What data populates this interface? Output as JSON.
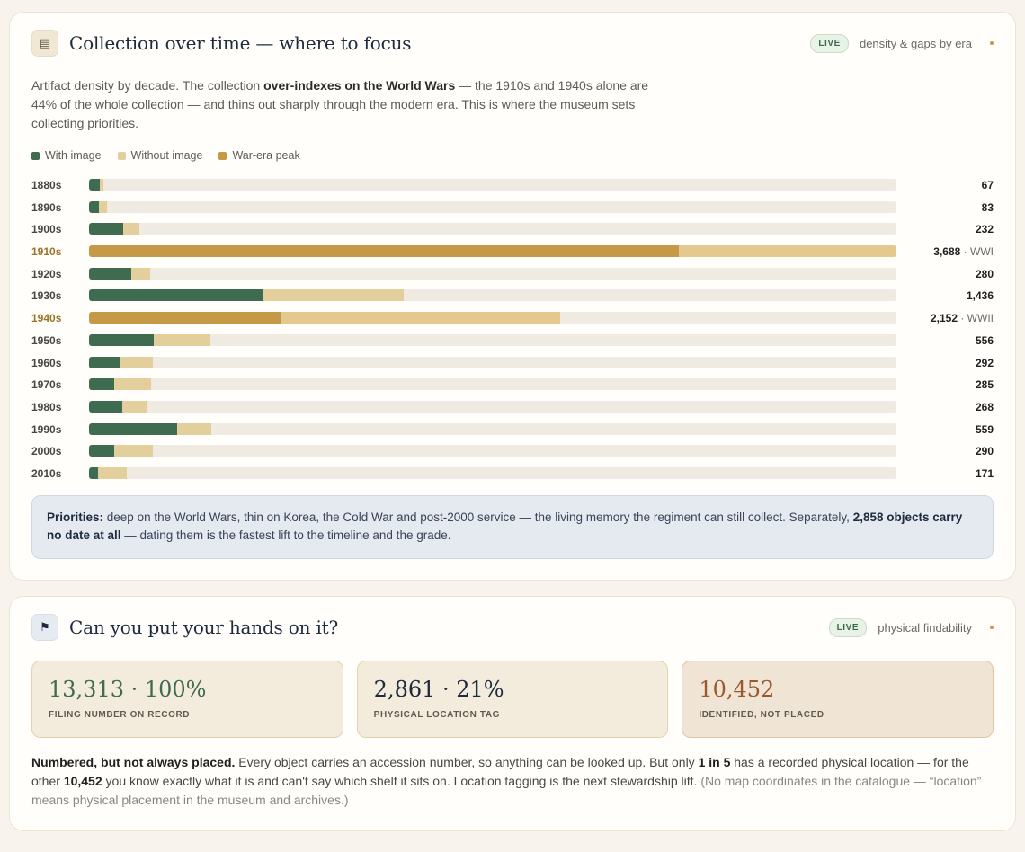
{
  "colors": {
    "with_image": "#3f6b51",
    "without_image": "#e3cf9b",
    "war_peak": "#c49a46",
    "war_peak_without_image": "#e3c98e",
    "track": "#f0ebe2",
    "stat_green": "#3f6b51",
    "stat_navy": "#1f2b3d",
    "stat_brown": "#9a5a2e"
  },
  "density_card": {
    "icon": "archive-icon",
    "icon_glyph": "▤",
    "title": "Collection over time — where to focus",
    "badge": "LIVE",
    "meta": "density & gaps by era",
    "lede_1": "Artifact density by decade. The collection ",
    "lede_bold": "over-indexes on the World Wars",
    "lede_2": " — the 1910s and 1940s alone are 44% of the whole collection — and thins out sharply through the modern era. This is where the museum sets collecting priorities.",
    "legend": [
      {
        "label": "With image",
        "color": "#3f6b51"
      },
      {
        "label": "Without image",
        "color": "#e3cf9b"
      },
      {
        "label": "War-era peak",
        "color": "#c49a46"
      }
    ],
    "priorities_label": "Priorities:",
    "priorities_text": " deep on the World Wars, thin on Korea, the Cold War and post-2000 service — the living memory the regiment can still collect. Separately, ",
    "priorities_bold": "2,858 objects carry no date at all",
    "priorities_tail": " — dating them is the fastest lift to the timeline and the grade."
  },
  "chart_data": {
    "type": "bar",
    "orientation": "horizontal",
    "stacked": true,
    "xlim": [
      0,
      3688
    ],
    "categories": [
      "1880s",
      "1890s",
      "1900s",
      "1910s",
      "1920s",
      "1930s",
      "1940s",
      "1950s",
      "1960s",
      "1970s",
      "1980s",
      "1990s",
      "2000s",
      "2010s"
    ],
    "totals_display": [
      "67",
      "83",
      "232",
      "3,688",
      "280",
      "1,436",
      "2,152",
      "556",
      "292",
      "285",
      "268",
      "559",
      "290",
      "171"
    ],
    "era_notes": [
      "",
      "",
      "",
      "· WWI",
      "",
      "",
      "· WWII",
      "",
      "",
      "",
      "",
      "",
      "",
      ""
    ],
    "war_peak": [
      false,
      false,
      false,
      true,
      false,
      false,
      true,
      false,
      false,
      false,
      false,
      false,
      false,
      false
    ],
    "series": [
      {
        "name": "With image",
        "values": [
          48,
          44,
          156,
          2695,
          191,
          795,
          879,
          297,
          142,
          116,
          150,
          403,
          115,
          40
        ]
      },
      {
        "name": "Without image",
        "values": [
          19,
          39,
          76,
          993,
          89,
          641,
          1273,
          259,
          150,
          169,
          118,
          156,
          175,
          131
        ]
      }
    ]
  },
  "findability_card": {
    "icon": "flag-icon",
    "icon_glyph": "⚑",
    "title": "Can you put your hands on it?",
    "badge": "LIVE",
    "meta": "physical findability",
    "stats": [
      {
        "value": "13,313 · 100%",
        "label": "FILING NUMBER ON RECORD"
      },
      {
        "value": "2,861 · 21%",
        "label": "PHYSICAL LOCATION TAG"
      },
      {
        "value": "10,452",
        "label": "IDENTIFIED, NOT PLACED"
      }
    ],
    "p_bold_1": "Numbered, but not always placed.",
    "p_text_1": " Every object carries an accession number, so anything can be looked up. But only ",
    "p_bold_2": "1 in 5",
    "p_text_2": " has a recorded physical location — for the other ",
    "p_bold_3": "10,452",
    "p_text_3": " you know exactly what it is and can't say which shelf it sits on. Location tagging is the next stewardship lift. ",
    "p_aside": "(No map coordinates in the catalogue — “location” means physical placement in the museum and archives.)"
  }
}
